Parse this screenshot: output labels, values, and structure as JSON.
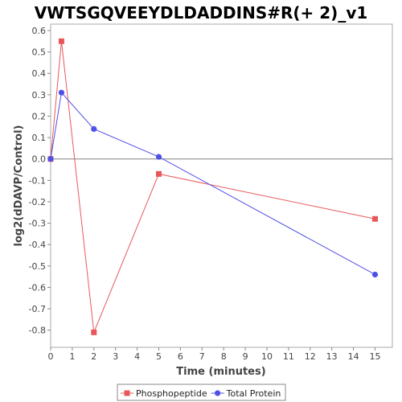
{
  "chart_data": {
    "type": "line",
    "title": "VWTSGQVEEYDLDADDINS#R(+ 2)_v1",
    "xlabel": "Time (minutes)",
    "ylabel": "log2(dDAVP/Control)",
    "xlim": [
      0,
      15.8
    ],
    "ylim": [
      -0.88,
      0.63
    ],
    "x_ticks": [
      0,
      1,
      2,
      3,
      4,
      5,
      6,
      7,
      8,
      9,
      10,
      11,
      12,
      13,
      14,
      15
    ],
    "y_ticks": [
      0.6,
      0.5,
      0.4,
      0.3,
      0.2,
      0.1,
      0.0,
      -0.1,
      -0.2,
      -0.3,
      -0.4,
      -0.5,
      -0.6,
      -0.7,
      -0.8
    ],
    "x_tick_labels": [
      "0",
      "1",
      "2",
      "3",
      "4",
      "5",
      "6",
      "7",
      "8",
      "9",
      "10",
      "11",
      "12",
      "13",
      "14",
      "15"
    ],
    "y_tick_labels": [
      "0.6",
      "0.5",
      "0.4",
      "0.3",
      "0.2",
      "0.1",
      "0.0",
      "-0.1",
      "-0.2",
      "-0.3",
      "-0.4",
      "-0.5",
      "-0.6",
      "-0.7",
      "-0.8"
    ],
    "grid": false,
    "zero_line": true,
    "legend_position": "bottom",
    "series": [
      {
        "name": "Phosphopeptide",
        "color": "#e8585b",
        "marker": "square",
        "x": [
          0,
          0.5,
          2,
          5,
          15
        ],
        "y": [
          0.0,
          0.55,
          -0.81,
          -0.07,
          -0.28
        ]
      },
      {
        "name": "Total Protein",
        "color": "#5050e8",
        "marker": "circle",
        "x": [
          0,
          0.5,
          2,
          5,
          15
        ],
        "y": [
          0.0,
          0.31,
          0.14,
          0.01,
          -0.54
        ]
      }
    ]
  }
}
